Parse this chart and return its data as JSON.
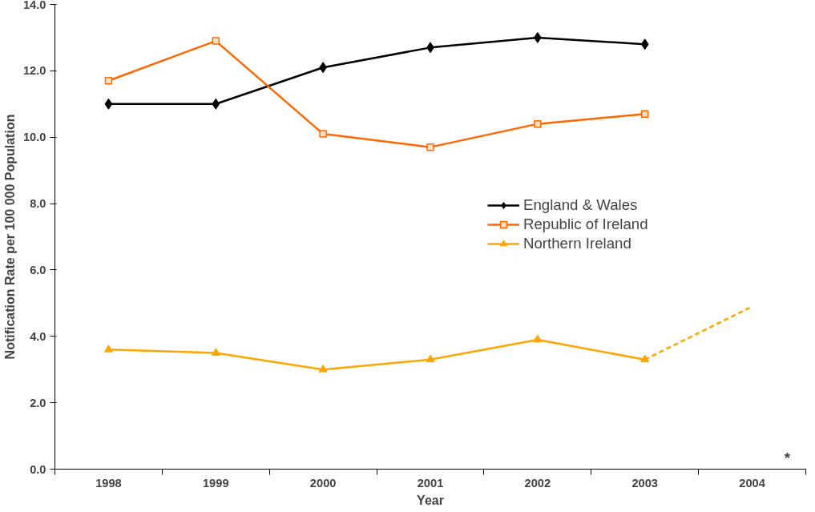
{
  "chart_data": {
    "type": "line",
    "xlabel": "Year",
    "ylabel": "Notification Rate per 100 000 Population",
    "categories": [
      "1998",
      "1999",
      "2000",
      "2001",
      "2002",
      "2003",
      "2004"
    ],
    "ylim": [
      0,
      14
    ],
    "yticks": [
      {
        "value": 0,
        "label": "0.0"
      },
      {
        "value": 2,
        "label": "2.0"
      },
      {
        "value": 4,
        "label": "4.0"
      },
      {
        "value": 6,
        "label": "6.0"
      },
      {
        "value": 8,
        "label": "8.0"
      },
      {
        "value": 10,
        "label": "10.0"
      },
      {
        "value": 12,
        "label": "12.0"
      },
      {
        "value": 14,
        "label": "14.0"
      }
    ],
    "grid": false,
    "legend": "right",
    "line_style": "solid",
    "annotations": [
      "*"
    ],
    "series": [
      {
        "name": "England & Wales",
        "color": "#000000",
        "marker": "diamond",
        "values": [
          11.0,
          11.0,
          12.1,
          12.7,
          13.0,
          12.8,
          null
        ]
      },
      {
        "name": "Republic of Ireland",
        "color": "#ff6600",
        "marker": "square",
        "values": [
          11.7,
          12.9,
          10.1,
          9.7,
          10.4,
          10.7,
          null
        ]
      },
      {
        "name": "Northern Ireland",
        "color": "#ffa500",
        "marker": "triangle",
        "values": [
          3.6,
          3.5,
          3.0,
          3.3,
          3.9,
          3.3,
          null
        ]
      },
      {
        "color": "#ffa500",
        "marker": "none",
        "line_style": "dashed",
        "values": [
          null,
          null,
          null,
          null,
          null,
          3.3,
          4.9
        ]
      }
    ]
  }
}
